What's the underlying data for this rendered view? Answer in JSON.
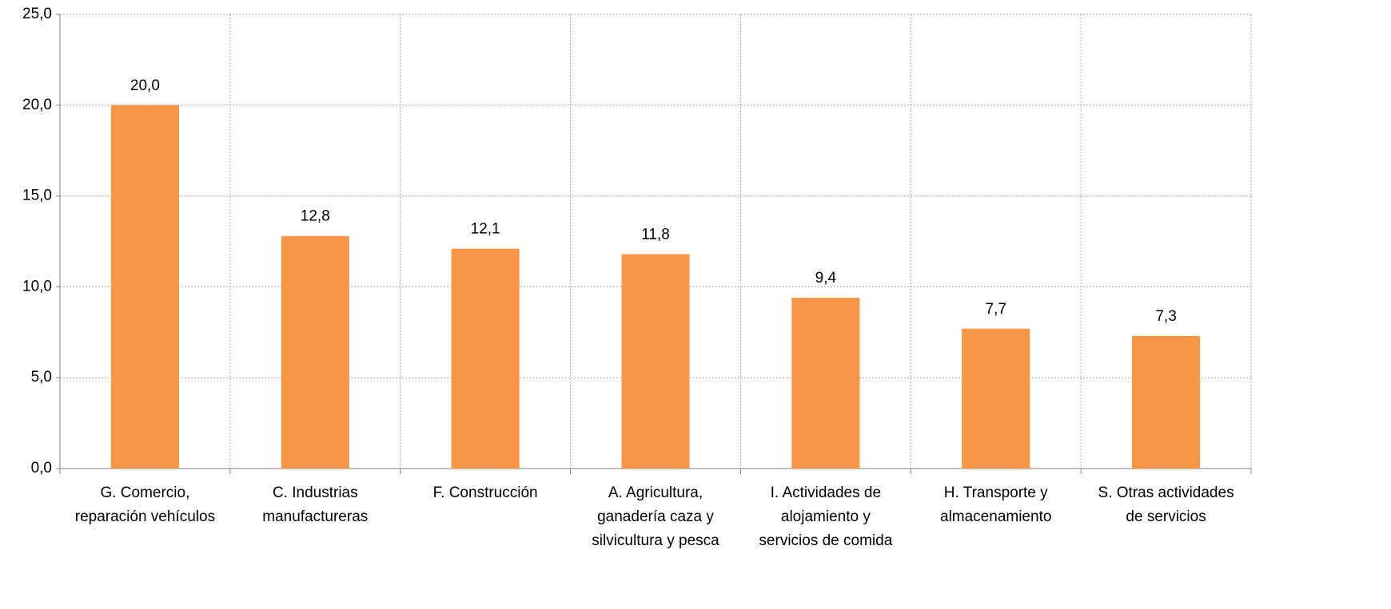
{
  "chart_data": {
    "type": "bar",
    "categories": [
      [
        "G. Comercio,",
        "reparación vehículos"
      ],
      [
        "C. Industrias",
        "manufactureras"
      ],
      [
        "F. Construcción"
      ],
      [
        "A. Agricultura,",
        "ganadería caza y",
        "silvicultura y pesca"
      ],
      [
        "I. Actividades de",
        "alojamiento y",
        "servicios de comida"
      ],
      [
        "H. Transporte y",
        "almacenamiento"
      ],
      [
        "S. Otras actividades",
        "de servicios"
      ]
    ],
    "values": [
      20.0,
      12.8,
      12.1,
      11.8,
      9.4,
      7.7,
      7.3
    ],
    "value_labels": [
      "20,0",
      "12,8",
      "12,1",
      "11,8",
      "9,4",
      "7,7",
      "7,3"
    ],
    "color": "#f79646",
    "ylim": [
      0,
      25
    ],
    "yticks": [
      {
        "value": 0,
        "label": "0,0"
      },
      {
        "value": 5,
        "label": "5,0"
      },
      {
        "value": 10,
        "label": "10,0"
      },
      {
        "value": 15,
        "label": "15,0"
      },
      {
        "value": 20,
        "label": "20,0"
      },
      {
        "value": 25,
        "label": "25,0"
      }
    ],
    "grid": true
  }
}
